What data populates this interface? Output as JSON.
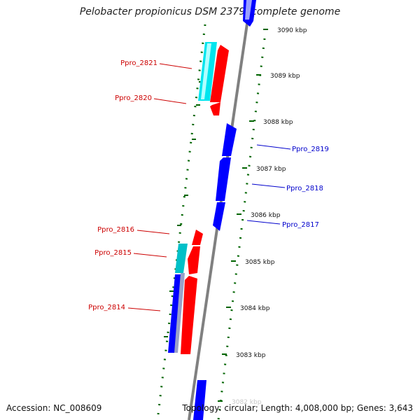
{
  "title": "Pelobacter propionicus DSM 2379, complete genome",
  "footer": {
    "accession": "Accession: NC_008609",
    "info": "Topology: circular; Length: 4,008,000 bp; Genes: 3,643"
  },
  "colors": {
    "forward_cds": "#ff0000",
    "reverse_cds": "#0000ff",
    "rna_forward": "#00e5ee",
    "rna_reverse": "#009a9a",
    "backbone": "#808080",
    "ticks": "#006400",
    "label_forward": "#cc0000",
    "label_reverse": "#0000cc"
  },
  "scale_labels": [
    "3090 kbp",
    "3089 kbp",
    "3088 kbp",
    "3087 kbp",
    "3086 kbp",
    "3085 kbp",
    "3084 kbp",
    "3083 kbp",
    "3082 kbp"
  ],
  "gene_labels": [
    {
      "id": "Ppro_2821",
      "strand": "forward"
    },
    {
      "id": "Ppro_2820",
      "strand": "forward"
    },
    {
      "id": "Ppro_2816",
      "strand": "forward"
    },
    {
      "id": "Ppro_2815",
      "strand": "forward"
    },
    {
      "id": "Ppro_2814",
      "strand": "forward"
    },
    {
      "id": "Ppro_2819",
      "strand": "reverse"
    },
    {
      "id": "Ppro_2818",
      "strand": "reverse"
    },
    {
      "id": "Ppro_2817",
      "strand": "reverse"
    }
  ]
}
